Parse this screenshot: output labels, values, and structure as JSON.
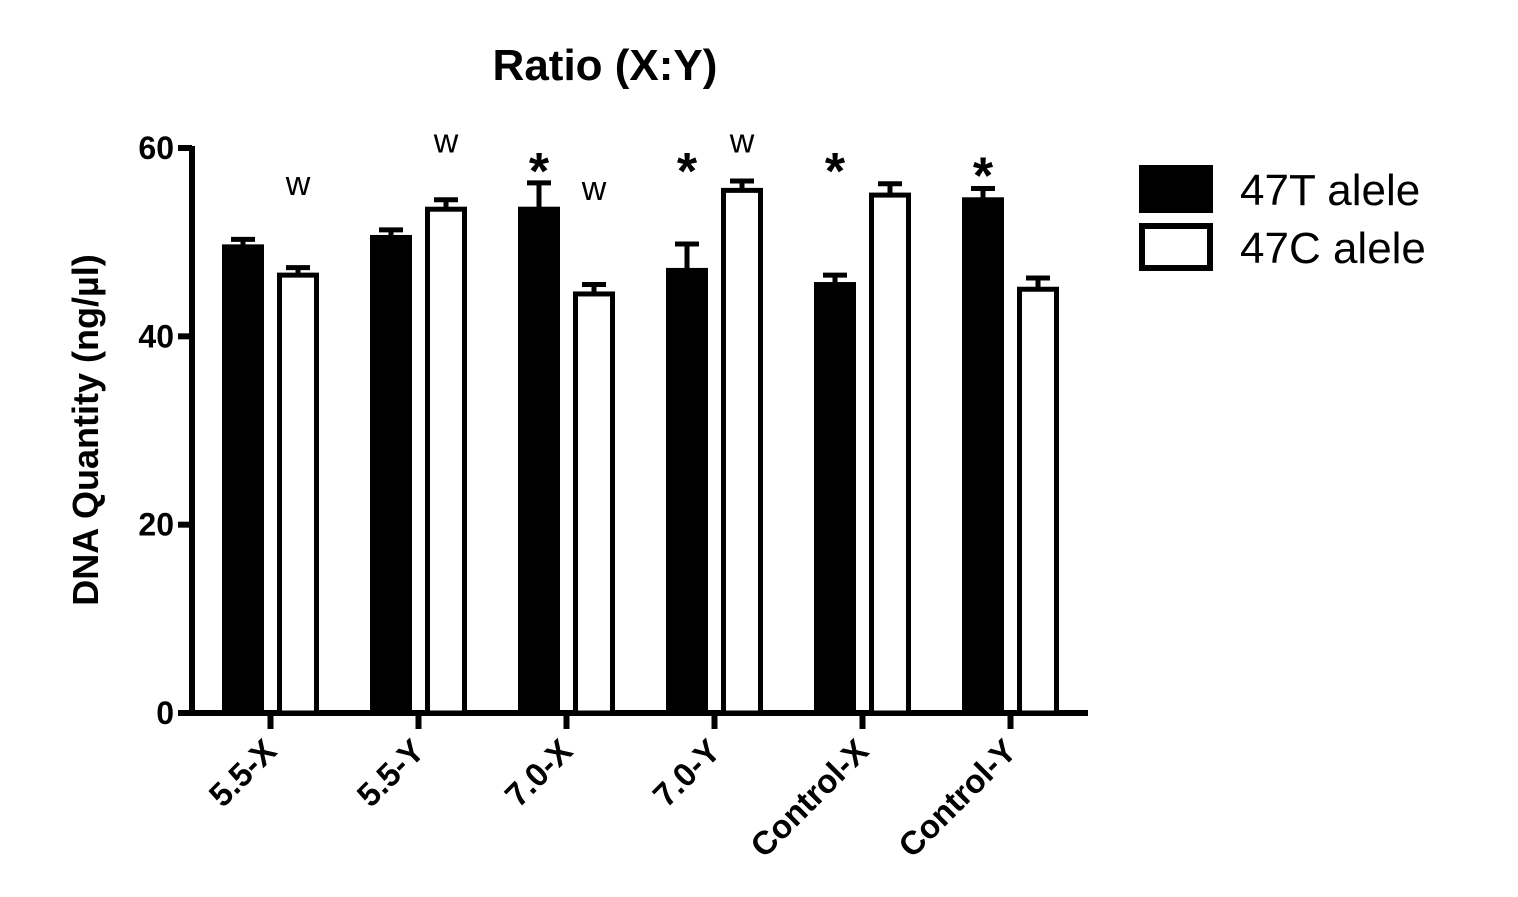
{
  "chart_data": {
    "type": "bar",
    "title": "Ratio (X:Y)",
    "xlabel": "",
    "ylabel": "DNA Quantity (ng/µl)",
    "ylim": [
      0,
      60
    ],
    "yticks": [
      0,
      20,
      40,
      60
    ],
    "categories": [
      "5.5-X",
      "5.5-Y",
      "7.0-X",
      "7.0-Y",
      "Control-X",
      "Control-Y"
    ],
    "series": [
      {
        "name": "47T alele",
        "fill": "#000000",
        "values": [
          49.5,
          50.5,
          53.5,
          47,
          45.5,
          54.5
        ],
        "errors": [
          0.8,
          0.8,
          2.8,
          2.8,
          1.0,
          1.2
        ]
      },
      {
        "name": "47C alele",
        "fill": "#ffffff",
        "values": [
          46.5,
          53.5,
          44.5,
          55.5,
          55,
          45
        ],
        "errors": [
          0.8,
          1.0,
          1.0,
          1.0,
          1.2,
          1.2
        ]
      }
    ],
    "annotations": [
      {
        "category": 0,
        "series": 1,
        "text": "w",
        "kind": "w",
        "value": 55
      },
      {
        "category": 1,
        "series": 1,
        "text": "w",
        "kind": "w",
        "value": 59.5
      },
      {
        "category": 2,
        "series": 0,
        "text": "*",
        "kind": "star",
        "value": 58
      },
      {
        "category": 2,
        "series": 1,
        "text": "w",
        "kind": "w",
        "value": 54.5
      },
      {
        "category": 3,
        "series": 0,
        "text": "*",
        "kind": "star",
        "value": 58
      },
      {
        "category": 3,
        "series": 1,
        "text": "w",
        "kind": "w",
        "value": 59.5
      },
      {
        "category": 4,
        "series": 0,
        "text": "*",
        "kind": "star",
        "value": 58
      },
      {
        "category": 5,
        "series": 0,
        "text": "*",
        "kind": "star",
        "value": 57.5
      }
    ],
    "legend": "right",
    "grid": false
  }
}
